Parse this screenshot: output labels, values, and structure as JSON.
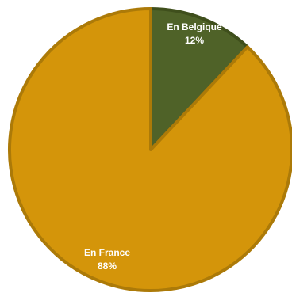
{
  "chart_data": {
    "type": "pie",
    "title": "",
    "slices": [
      {
        "label": "En Belgique",
        "value": 12,
        "value_label": "12%",
        "color": "#4f6228"
      },
      {
        "label": "En France",
        "value": 88,
        "value_label": "88%",
        "color": "#d4950a"
      }
    ],
    "start_angle": "12 o'clock",
    "direction": "clockwise",
    "slice_border_colors": [
      "#3f4f1c",
      "#ac7a08"
    ],
    "legend": "none"
  }
}
